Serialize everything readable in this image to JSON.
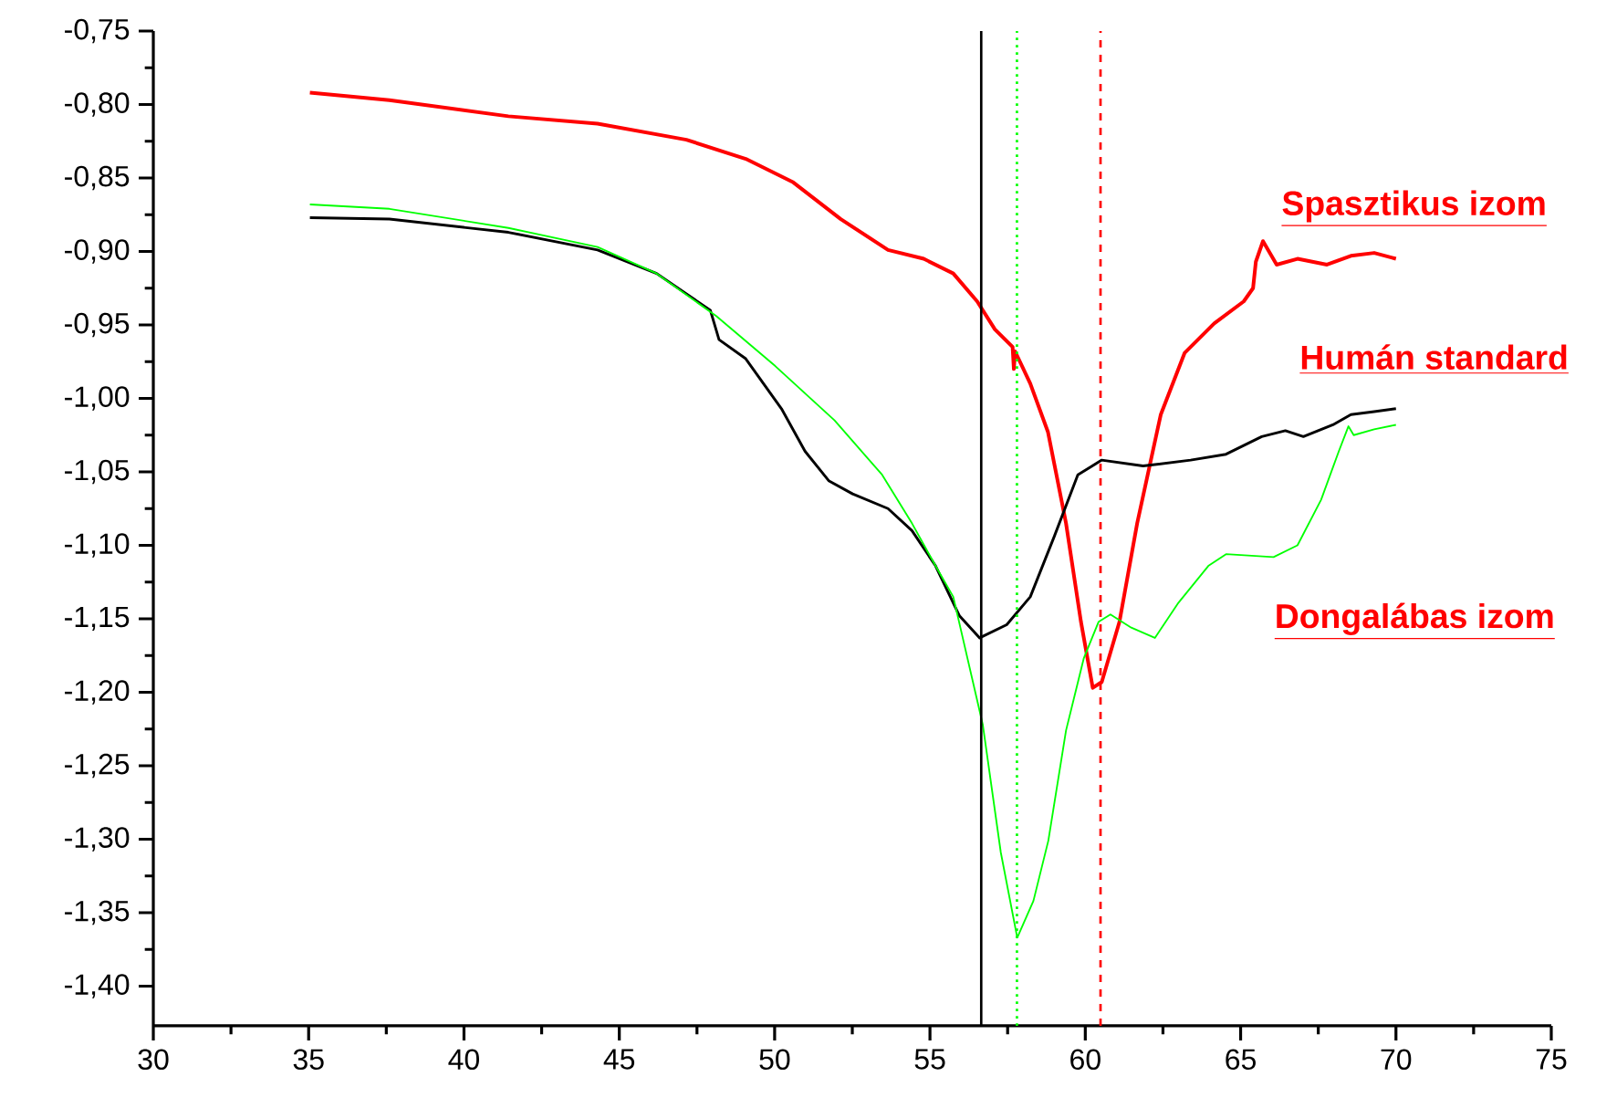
{
  "chart_data": {
    "type": "line",
    "xlim": [
      30,
      75
    ],
    "xticks": [
      30,
      35,
      40,
      45,
      50,
      55,
      60,
      65,
      70,
      75
    ],
    "ylim": [
      -1.427,
      -0.75
    ],
    "yticks": [
      {
        "value": -0.75,
        "label": "-0,75"
      },
      {
        "value": -0.8,
        "label": "-0,80"
      },
      {
        "value": -0.85,
        "label": "-0,85"
      },
      {
        "value": -0.9,
        "label": "-0,90"
      },
      {
        "value": -0.95,
        "label": "-0,95"
      },
      {
        "value": -1.0,
        "label": "-1,00"
      },
      {
        "value": -1.05,
        "label": "-1,05"
      },
      {
        "value": -1.1,
        "label": "-1,10"
      },
      {
        "value": -1.15,
        "label": "-1,15"
      },
      {
        "value": -1.2,
        "label": "-1,20"
      },
      {
        "value": -1.25,
        "label": "-1,25"
      },
      {
        "value": -1.3,
        "label": "-1,30"
      },
      {
        "value": -1.35,
        "label": "-1,35"
      },
      {
        "value": -1.4,
        "label": "-1,40"
      }
    ],
    "grid": false,
    "marker": "none",
    "line_style": "solid",
    "series": [
      {
        "color": "#ff0000",
        "x": [
          35.04,
          37.6,
          41.43,
          44.3,
          47.16,
          49.07,
          50.6,
          52.13,
          53.65,
          54.8,
          55.75,
          56.52,
          57.09,
          57.66,
          57.7,
          57.74,
          58.23,
          58.8,
          59.38,
          59.86,
          60.24,
          60.53,
          61.1,
          61.67,
          62.43,
          63.2,
          64.15,
          65.1,
          65.4,
          65.49,
          65.72,
          66.16,
          66.83,
          67.78,
          68.55,
          69.3,
          70.0
        ],
        "values": [
          -0.792,
          -0.797,
          -0.808,
          -0.813,
          -0.824,
          -0.837,
          -0.853,
          -0.878,
          -0.899,
          -0.905,
          -0.915,
          -0.934,
          -0.953,
          -0.965,
          -0.98,
          -0.968,
          -0.99,
          -1.023,
          -1.085,
          -1.152,
          -1.197,
          -1.193,
          -1.152,
          -1.085,
          -1.011,
          -0.969,
          -0.949,
          -0.934,
          -0.925,
          -0.907,
          -0.893,
          -0.909,
          -0.905,
          -0.909,
          -0.903,
          -0.901,
          -0.905
        ]
      },
      {
        "color": "#000000",
        "x": [
          35.04,
          37.6,
          41.43,
          44.3,
          46.2,
          47.93,
          48.21,
          49.07,
          50.22,
          50.98,
          51.74,
          52.51,
          53.65,
          54.42,
          55.18,
          55.95,
          56.6,
          57.47,
          58.23,
          59.0,
          59.76,
          60.53,
          61.86,
          63.39,
          64.53,
          65.68,
          66.44,
          67.02,
          67.97,
          68.55,
          69.3,
          70.0
        ],
        "values": [
          -0.877,
          -0.878,
          -0.887,
          -0.899,
          -0.915,
          -0.94,
          -0.96,
          -0.973,
          -1.007,
          -1.036,
          -1.056,
          -1.065,
          -1.075,
          -1.09,
          -1.114,
          -1.148,
          -1.163,
          -1.154,
          -1.135,
          -1.094,
          -1.052,
          -1.042,
          -1.046,
          -1.042,
          -1.038,
          -1.026,
          -1.022,
          -1.026,
          -1.018,
          -1.011,
          -1.009,
          -1.007
        ]
      },
      {
        "color": "#00ff00",
        "x": [
          35.04,
          37.6,
          41.43,
          44.3,
          46.2,
          48.12,
          50.02,
          51.93,
          53.46,
          54.42,
          55.18,
          55.75,
          56.7,
          57.28,
          57.81,
          58.33,
          58.81,
          59.38,
          59.95,
          60.43,
          60.81,
          61.48,
          62.24,
          63.0,
          63.96,
          64.53,
          66.06,
          66.83,
          67.59,
          68.16,
          68.47,
          68.64,
          69.3,
          70.0
        ],
        "values": [
          -0.868,
          -0.871,
          -0.884,
          -0.897,
          -0.915,
          -0.944,
          -0.978,
          -1.015,
          -1.052,
          -1.085,
          -1.114,
          -1.135,
          -1.222,
          -1.309,
          -1.367,
          -1.342,
          -1.301,
          -1.226,
          -1.177,
          -1.152,
          -1.147,
          -1.156,
          -1.163,
          -1.139,
          -1.114,
          -1.106,
          -1.108,
          -1.1,
          -1.069,
          -1.036,
          -1.019,
          -1.025,
          -1.021,
          -1.018
        ]
      }
    ],
    "ref_lines": [
      {
        "axis": "x",
        "value": 56.65,
        "color": "#000000",
        "line_style": "solid"
      },
      {
        "axis": "x",
        "value": 57.8,
        "color": "#00ff00",
        "line_style": "dotted"
      },
      {
        "axis": "x",
        "value": 60.49,
        "color": "#ff0000",
        "line_style": "dashed"
      }
    ],
    "annotations": [
      "Spasztikus izom",
      "Humán standard",
      "Dongalábas izom"
    ]
  }
}
